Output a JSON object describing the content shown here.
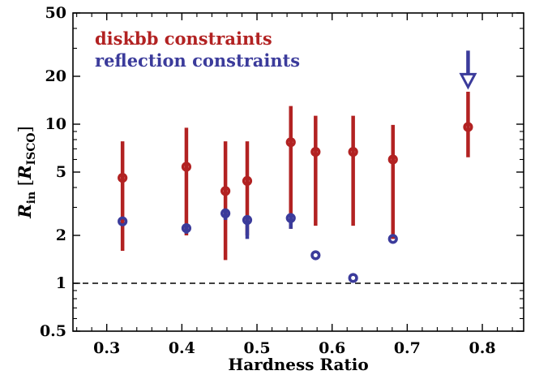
{
  "chart_data": {
    "type": "scatter",
    "xlabel": "Hardness Ratio",
    "ylabel_main": "R",
    "ylabel_sub": "in",
    "ylabel_bracket_main": "R",
    "ylabel_bracket_sub": "ISCO",
    "xlim": [
      0.255,
      0.855
    ],
    "ylim": [
      0.5,
      50
    ],
    "yscale": "log",
    "x_ticks": [
      0.3,
      0.4,
      0.5,
      0.6,
      0.7,
      0.8
    ],
    "x_tick_labels": [
      "0.3",
      "0.4",
      "0.5",
      "0.6",
      "0.7",
      "0.8"
    ],
    "y_ticks": [
      0.5,
      1,
      2,
      5,
      10,
      20,
      50
    ],
    "y_tick_labels": [
      "0.5",
      "1",
      "2",
      "5",
      "10",
      "20",
      "50"
    ],
    "reference_line": {
      "y": 1,
      "style": "dashed"
    },
    "legend_position": "top-left",
    "series": [
      {
        "name": "diskbb constraints",
        "color": "#b22222",
        "points": [
          {
            "x": 0.321,
            "y": 4.6,
            "ylow": 1.6,
            "yhigh": 7.8
          },
          {
            "x": 0.406,
            "y": 5.4,
            "ylow": 2.0,
            "yhigh": 9.5
          },
          {
            "x": 0.458,
            "y": 3.8,
            "ylow": 1.4,
            "yhigh": 7.8
          },
          {
            "x": 0.487,
            "y": 4.4,
            "ylow": 2.0,
            "yhigh": 7.8
          },
          {
            "x": 0.545,
            "y": 7.7,
            "ylow": 2.2,
            "yhigh": 13.0
          },
          {
            "x": 0.578,
            "y": 6.7,
            "ylow": 2.3,
            "yhigh": 11.3
          },
          {
            "x": 0.628,
            "y": 6.7,
            "ylow": 2.3,
            "yhigh": 11.3
          },
          {
            "x": 0.681,
            "y": 6.0,
            "ylow": 1.9,
            "yhigh": 9.9
          },
          {
            "x": 0.781,
            "y": 9.6,
            "ylow": 6.2,
            "yhigh": 16.0
          }
        ]
      },
      {
        "name": "reflection constraints",
        "color": "#3b3b9b",
        "points": [
          {
            "x": 0.321,
            "y": 2.45,
            "ylow": 2.45,
            "yhigh": 2.45
          },
          {
            "x": 0.406,
            "y": 2.22,
            "ylow": 2.05,
            "yhigh": 2.3
          },
          {
            "x": 0.458,
            "y": 2.75,
            "ylow": 2.5,
            "yhigh": 2.95
          },
          {
            "x": 0.487,
            "y": 2.5,
            "ylow": 1.9,
            "yhigh": 2.6
          },
          {
            "x": 0.545,
            "y": 2.57,
            "ylow": 2.2,
            "yhigh": 2.75
          },
          {
            "x": 0.578,
            "y": 1.5,
            "ylow": 1.5,
            "yhigh": 1.5
          },
          {
            "x": 0.628,
            "y": 1.08,
            "ylow": 1.08,
            "yhigh": 1.08
          },
          {
            "x": 0.681,
            "y": 1.9,
            "ylow": 1.9,
            "yhigh": 1.9
          }
        ],
        "limits": [
          {
            "x": 0.781,
            "y": 17.5,
            "yhigh": 29.0,
            "kind": "upper-limit"
          }
        ]
      }
    ]
  }
}
